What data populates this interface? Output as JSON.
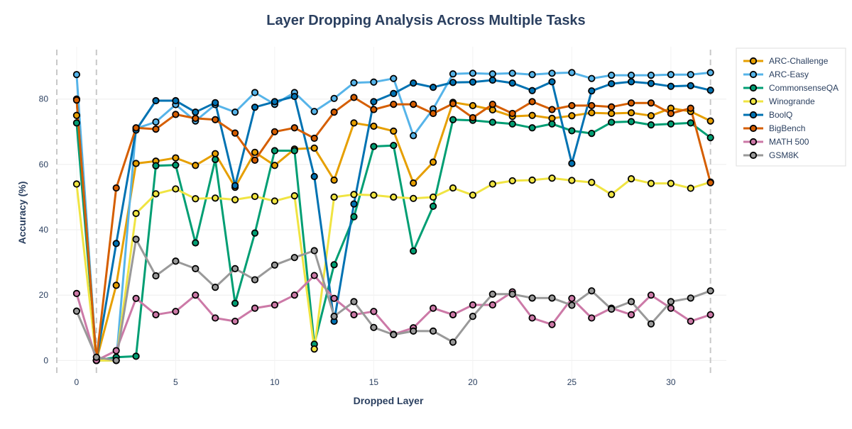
{
  "chart_data": {
    "type": "line",
    "title": "Layer Dropping Analysis Across Multiple Tasks",
    "xlabel": "Dropped Layer",
    "ylabel": "Accuracy (%)",
    "xlim": [
      -1,
      32.8
    ],
    "ylim": [
      -6,
      96
    ],
    "xticks": [
      0,
      5,
      10,
      15,
      20,
      25,
      30
    ],
    "yticks": [
      0,
      20,
      40,
      60,
      80
    ],
    "vlines": [
      -1,
      1,
      32
    ],
    "x": [
      0,
      1,
      2,
      3,
      4,
      5,
      6,
      7,
      8,
      9,
      10,
      11,
      12,
      13,
      14,
      15,
      16,
      17,
      18,
      19,
      20,
      21,
      22,
      23,
      24,
      25,
      26,
      27,
      28,
      29,
      30,
      31,
      32
    ],
    "series": [
      {
        "name": "ARC-Challenge",
        "color": "#E69F00",
        "values": [
          75,
          0,
          23,
          60.3,
          61,
          62,
          59.7,
          63.3,
          53,
          63.7,
          59.7,
          64.7,
          65,
          55.2,
          72.7,
          71.7,
          70.2,
          54.3,
          60.7,
          79,
          78,
          76.7,
          74.7,
          75,
          74.1,
          74.9,
          75.8,
          75.6,
          75.8,
          74.9,
          77.2,
          76.2,
          73.3
        ]
      },
      {
        "name": "ARC-Easy",
        "color": "#56B4E9",
        "values": [
          87.5,
          0,
          0,
          71,
          73,
          78.3,
          73.3,
          78.3,
          76,
          82,
          78.4,
          82,
          76.2,
          80.2,
          85,
          85.2,
          86.3,
          68.8,
          77,
          87.7,
          87.9,
          87.7,
          87.9,
          87.5,
          87.9,
          88.1,
          86.3,
          87.3,
          87.3,
          87.3,
          87.5,
          87.5,
          88.1
        ]
      },
      {
        "name": "CommonsenseQA",
        "color": "#009E73",
        "values": [
          72.7,
          0,
          1,
          1.3,
          59.6,
          59.8,
          36,
          61.5,
          17.5,
          39,
          64.2,
          64.2,
          5,
          29.3,
          44,
          65.5,
          65.8,
          33.5,
          47.2,
          73.7,
          73.5,
          72.9,
          72.4,
          71.2,
          72.4,
          70.3,
          69.5,
          72.9,
          73.1,
          72.1,
          72.4,
          72.7,
          68.2
        ]
      },
      {
        "name": "Winogrande",
        "color": "#F0E442",
        "values": [
          54,
          0,
          0,
          45,
          51,
          52.5,
          49.5,
          49.7,
          49.2,
          50.2,
          48.8,
          50.4,
          3.5,
          50,
          50.8,
          50.6,
          50,
          49.6,
          50,
          52.8,
          50.6,
          54,
          55,
          55.2,
          55.8,
          55.1,
          54.5,
          50.8,
          55.6,
          54.2,
          54.2,
          52.7,
          54.6
        ]
      },
      {
        "name": "BoolQ",
        "color": "#0072B2",
        "values": [
          80,
          0,
          35.8,
          70.5,
          79.5,
          79.5,
          76,
          78.9,
          53.5,
          77.5,
          79.2,
          80.8,
          56.3,
          12,
          47.9,
          79.2,
          81.7,
          84.9,
          83.6,
          85.1,
          85.2,
          85.8,
          84.9,
          82.6,
          85.3,
          60.3,
          82.5,
          84.7,
          85.3,
          84.8,
          83.9,
          84.1,
          82.7
        ]
      },
      {
        "name": "BigBench",
        "color": "#D55E00",
        "values": [
          79.7,
          0,
          52.8,
          71.2,
          70.8,
          75.3,
          74.1,
          73.7,
          69.6,
          61.3,
          70,
          71.2,
          68,
          76,
          80.5,
          76.8,
          78.4,
          78.4,
          75.6,
          78.6,
          74.3,
          78.4,
          75.6,
          79.2,
          76.8,
          78,
          78,
          77.6,
          78.8,
          78.8,
          75.6,
          77.2,
          54.4
        ]
      },
      {
        "name": "MATH 500",
        "color": "#CC79A7",
        "values": [
          20.5,
          0,
          3,
          19,
          14,
          15,
          20,
          13,
          12,
          16,
          17,
          20,
          26,
          19,
          14,
          15,
          8,
          10,
          16,
          14,
          17,
          17,
          21,
          13,
          11,
          19,
          13,
          16,
          14,
          20,
          16,
          12,
          14
        ]
      },
      {
        "name": "GSM8K",
        "color": "#999999",
        "values": [
          15.1,
          1,
          0,
          37.1,
          25.9,
          30.4,
          28.1,
          22.4,
          28.1,
          24.7,
          29.2,
          31.5,
          33.6,
          13.5,
          18,
          10.1,
          7.9,
          9,
          9,
          5.6,
          13.5,
          20.3,
          20.3,
          19.1,
          19.1,
          16.9,
          21.3,
          15.7,
          18,
          11.2,
          18,
          19.1,
          21.3
        ]
      }
    ]
  }
}
